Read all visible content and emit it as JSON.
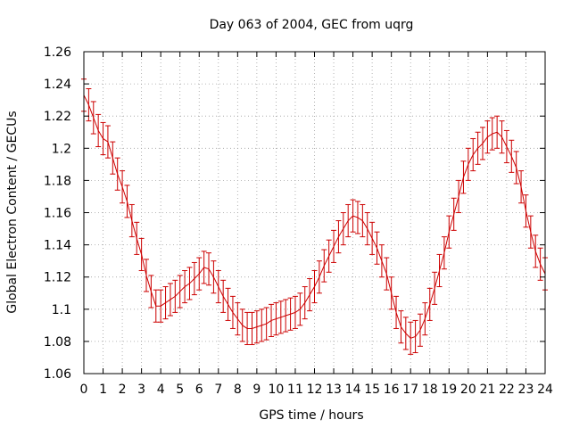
{
  "chart_data": {
    "type": "line",
    "title": "Day 063 of 2004, GEC from uqrg",
    "xlabel": "GPS time / hours",
    "ylabel": "Global Electron Content / GECUs",
    "xlim": [
      0,
      24
    ],
    "ylim": [
      1.06,
      1.26
    ],
    "grid": true,
    "x_ticks": [
      "0",
      "1",
      "2",
      "3",
      "4",
      "5",
      "6",
      "7",
      "8",
      "9",
      "10",
      "11",
      "12",
      "13",
      "14",
      "15",
      "16",
      "17",
      "18",
      "19",
      "20",
      "21",
      "22",
      "23",
      "24"
    ],
    "y_ticks": [
      "1.06",
      "1.08",
      "1.1",
      "1.12",
      "1.14",
      "1.16",
      "1.18",
      "1.2",
      "1.22",
      "1.24",
      "1.26"
    ],
    "error": 0.01,
    "series": [
      {
        "name": "GEC",
        "color": "#cc0000",
        "x": [
          0,
          0.25,
          0.5,
          0.75,
          1,
          1.25,
          1.5,
          1.75,
          2,
          2.25,
          2.5,
          2.75,
          3,
          3.25,
          3.5,
          3.75,
          4,
          4.25,
          4.5,
          4.75,
          5,
          5.25,
          5.5,
          5.75,
          6,
          6.25,
          6.5,
          6.75,
          7,
          7.25,
          7.5,
          7.75,
          8,
          8.25,
          8.5,
          8.75,
          9,
          9.25,
          9.5,
          9.75,
          10,
          10.25,
          10.5,
          10.75,
          11,
          11.25,
          11.5,
          11.75,
          12,
          12.25,
          12.5,
          12.75,
          13,
          13.25,
          13.5,
          13.75,
          14,
          14.25,
          14.5,
          14.75,
          15,
          15.25,
          15.5,
          15.75,
          16,
          16.25,
          16.5,
          16.75,
          17,
          17.25,
          17.5,
          17.75,
          18,
          18.25,
          18.5,
          18.75,
          19,
          19.25,
          19.5,
          19.75,
          20,
          20.25,
          20.5,
          20.75,
          21,
          21.25,
          21.5,
          21.75,
          22,
          22.25,
          22.5,
          22.75,
          23,
          23.25,
          23.5,
          23.75,
          24
        ],
        "values": [
          1.233,
          1.227,
          1.219,
          1.211,
          1.206,
          1.204,
          1.194,
          1.184,
          1.176,
          1.167,
          1.155,
          1.144,
          1.134,
          1.121,
          1.111,
          1.102,
          1.102,
          1.104,
          1.106,
          1.108,
          1.111,
          1.114,
          1.116,
          1.119,
          1.122,
          1.126,
          1.125,
          1.12,
          1.114,
          1.108,
          1.103,
          1.098,
          1.094,
          1.09,
          1.088,
          1.088,
          1.089,
          1.09,
          1.091,
          1.093,
          1.094,
          1.095,
          1.096,
          1.097,
          1.098,
          1.1,
          1.104,
          1.109,
          1.114,
          1.12,
          1.127,
          1.133,
          1.139,
          1.145,
          1.15,
          1.155,
          1.158,
          1.157,
          1.155,
          1.15,
          1.144,
          1.138,
          1.13,
          1.122,
          1.11,
          1.098,
          1.089,
          1.085,
          1.082,
          1.083,
          1.087,
          1.094,
          1.103,
          1.113,
          1.124,
          1.135,
          1.148,
          1.159,
          1.17,
          1.182,
          1.19,
          1.196,
          1.2,
          1.203,
          1.207,
          1.209,
          1.21,
          1.207,
          1.201,
          1.195,
          1.188,
          1.176,
          1.161,
          1.148,
          1.136,
          1.128,
          1.122
        ]
      }
    ]
  }
}
